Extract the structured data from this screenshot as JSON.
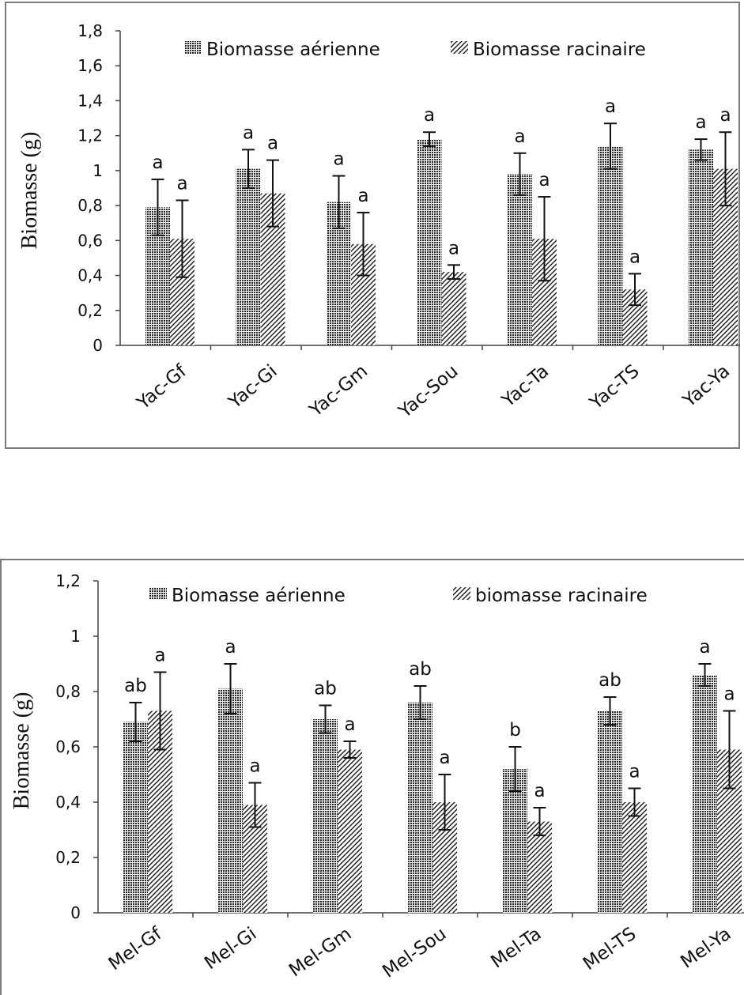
{
  "chart_data": [
    {
      "type": "bar",
      "categories": [
        "Yac-Gf",
        "Yac-Gi",
        "Yac-Gm",
        "Yac-Sou",
        "Yac-Ta",
        "Yac-TS",
        "Yac-Ya"
      ],
      "ylabel": "Biomasse (g)",
      "xlabel": "",
      "ylim": [
        0,
        1.8
      ],
      "yticks": [
        "0",
        "0,2",
        "0,4",
        "0,6",
        "0,8",
        "1",
        "1,2",
        "1,4",
        "1,6",
        "1,8"
      ],
      "legend_position": "top-right",
      "series": [
        {
          "name": "Biomasse aérienne",
          "pattern": "dense-grid",
          "values": [
            0.79,
            1.01,
            0.82,
            1.18,
            0.98,
            1.14,
            1.12
          ],
          "errors": [
            0.16,
            0.11,
            0.15,
            0.04,
            0.12,
            0.13,
            0.06
          ],
          "letters": [
            "a",
            "a",
            "a",
            "a",
            "a",
            "a",
            "a"
          ]
        },
        {
          "name": "Biomasse racinaire",
          "pattern": "diagonal-hatch",
          "values": [
            0.61,
            0.87,
            0.58,
            0.42,
            0.61,
            0.32,
            1.01
          ],
          "errors": [
            0.22,
            0.19,
            0.18,
            0.04,
            0.24,
            0.09,
            0.21
          ],
          "letters": [
            "a",
            "a",
            "a",
            "a",
            "a",
            "a",
            "a"
          ]
        }
      ]
    },
    {
      "type": "bar",
      "categories": [
        "Mel-Gf",
        "Mel-Gi",
        "Mel-Gm",
        "Mel-Sou",
        "Mel-Ta",
        "Mel-TS",
        "Mel-Ya"
      ],
      "ylabel": "Biomasse (g)",
      "xlabel": "",
      "ylim": [
        0,
        1.2
      ],
      "yticks": [
        "0",
        "0,2",
        "0,4",
        "0,6",
        "0,8",
        "1",
        "1,2"
      ],
      "legend_position": "top-right",
      "series": [
        {
          "name": "Biomasse aérienne",
          "pattern": "dense-grid",
          "values": [
            0.69,
            0.81,
            0.7,
            0.76,
            0.52,
            0.73,
            0.86
          ],
          "errors": [
            0.07,
            0.09,
            0.05,
            0.06,
            0.08,
            0.05,
            0.04
          ],
          "letters": [
            "ab",
            "a",
            "ab",
            "ab",
            "b",
            "ab",
            "a"
          ]
        },
        {
          "name": "biomasse racinaire",
          "pattern": "diagonal-hatch",
          "values": [
            0.73,
            0.39,
            0.59,
            0.4,
            0.33,
            0.4,
            0.59
          ],
          "errors": [
            0.14,
            0.08,
            0.03,
            0.1,
            0.05,
            0.05,
            0.14
          ],
          "letters": [
            "a",
            "a",
            "a",
            "a",
            "a",
            "a",
            "a"
          ]
        }
      ]
    }
  ]
}
